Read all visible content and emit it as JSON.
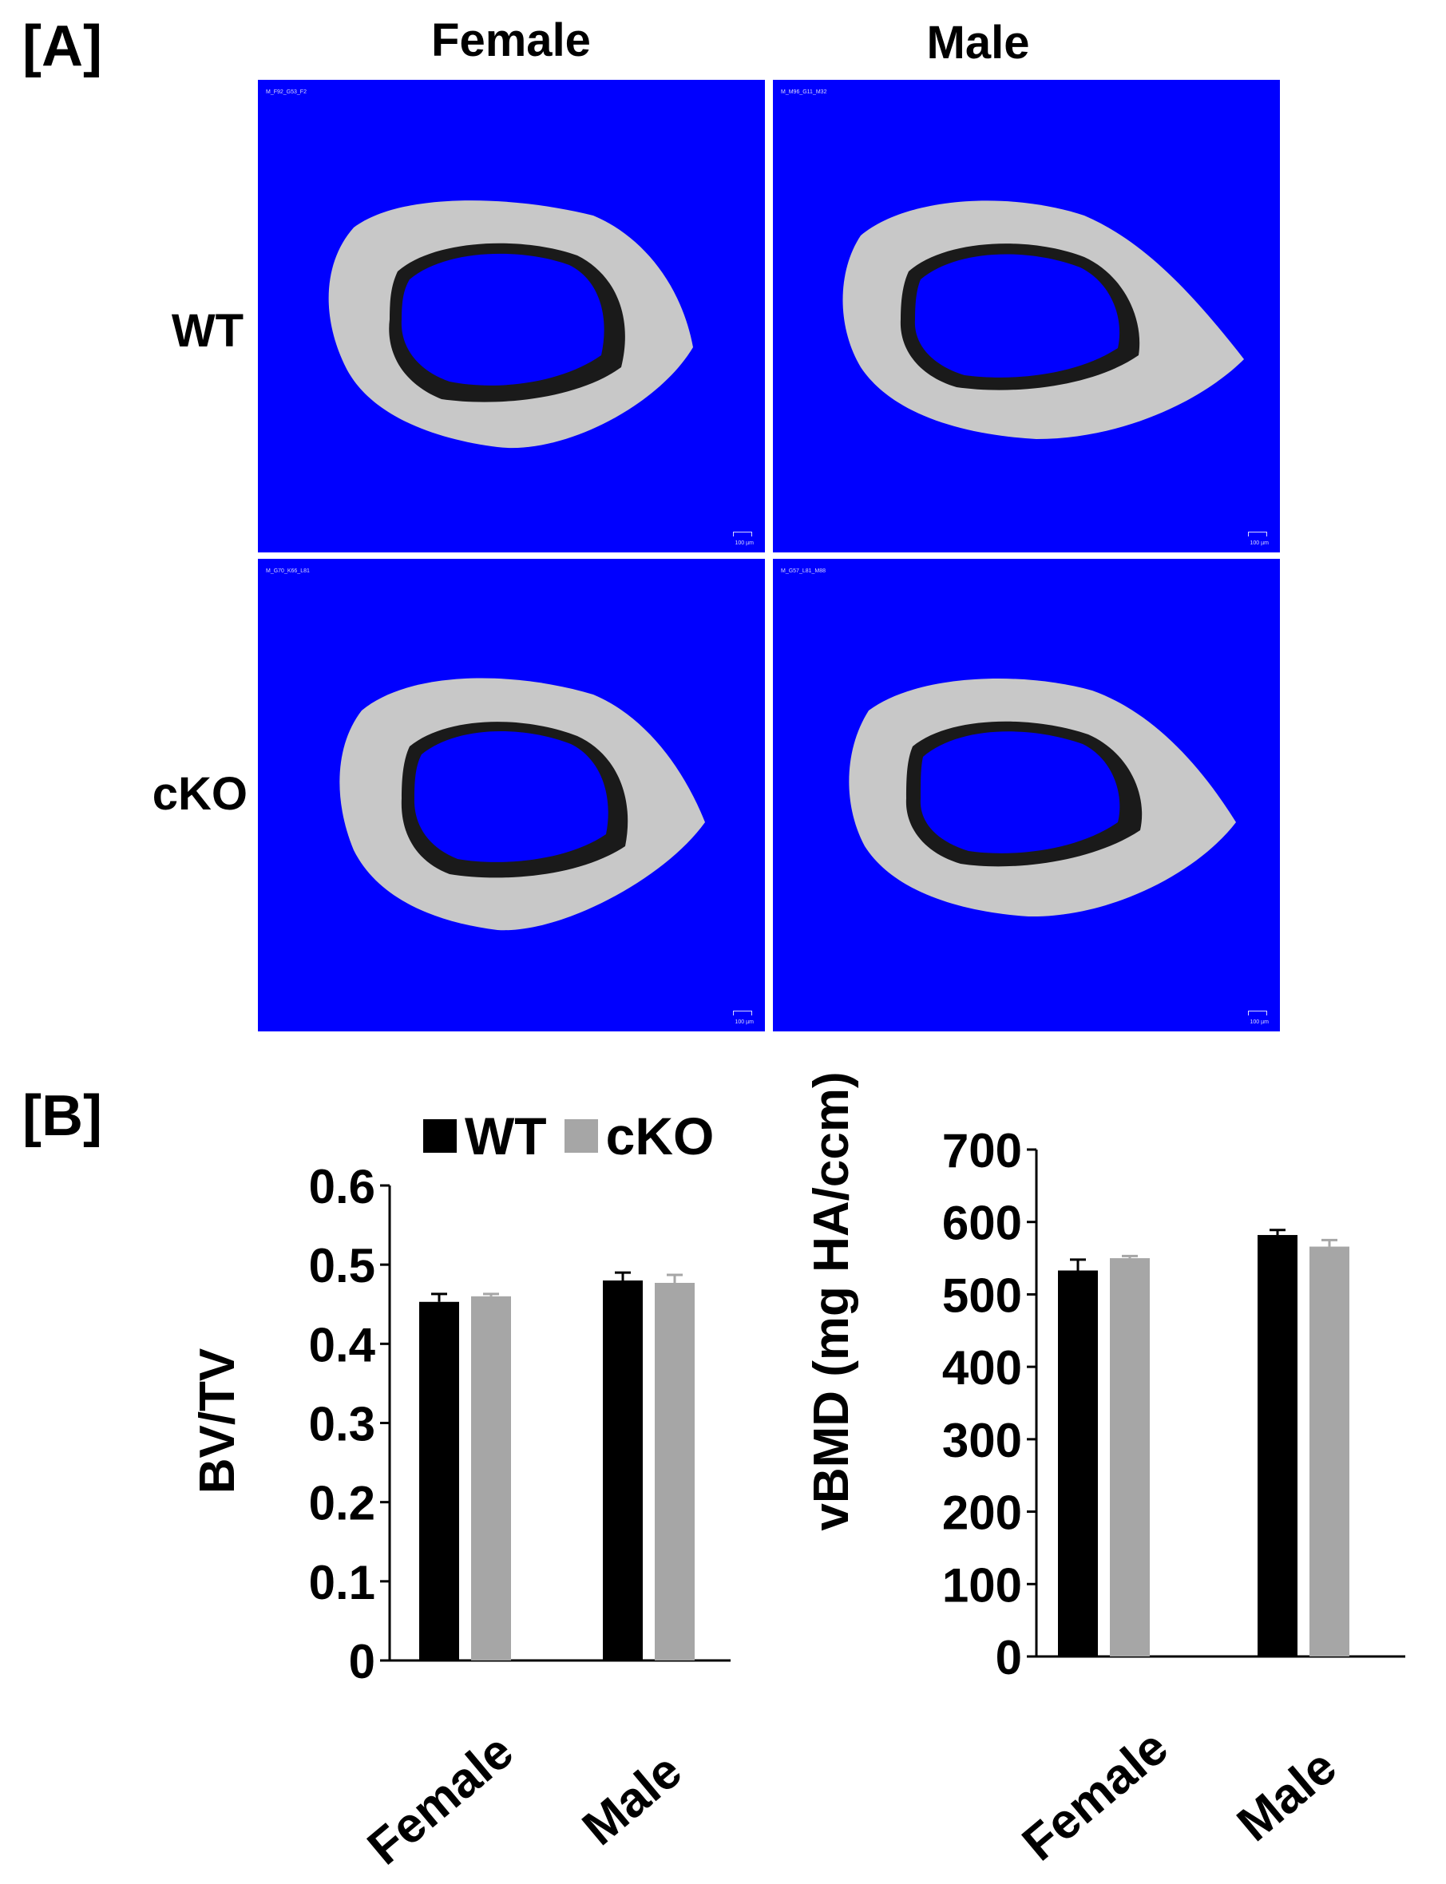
{
  "panel_a": {
    "label": "[A]",
    "columns": [
      "Female",
      "Male"
    ],
    "rows": [
      "WT",
      "cKO"
    ],
    "tiles": [
      {
        "caption": "M_F92_G53_F2",
        "scale": "100 µm"
      },
      {
        "caption": "M_M96_G11_M32",
        "scale": "100 µm"
      },
      {
        "caption": "M_G70_K66_L81",
        "scale": "100 µm"
      },
      {
        "caption": "M_G57_L81_M88",
        "scale": "100 µm"
      }
    ],
    "colors": {
      "background": "#0000ff",
      "bone": "#c8c8c8",
      "marrow_shadow": "#1a1a1a"
    }
  },
  "panel_b": {
    "label": "[B]",
    "legend": [
      {
        "name": "WT",
        "color": "#000000"
      },
      {
        "name": "cKO",
        "color": "#a6a6a6"
      }
    ]
  },
  "chart_data": [
    {
      "type": "bar",
      "categories": [
        "Female",
        "Male"
      ],
      "series": [
        {
          "name": "WT",
          "values": [
            0.453,
            0.48
          ],
          "errors": [
            0.01,
            0.01
          ]
        },
        {
          "name": "cKO",
          "values": [
            0.46,
            0.477
          ],
          "errors": [
            0.003,
            0.01
          ]
        }
      ],
      "ylabel": "BV/TV",
      "ylim": [
        0,
        0.6
      ],
      "yticks": [
        "0",
        "0.1",
        "0.2",
        "0.3",
        "0.4",
        "0.5",
        "0.6"
      ],
      "colors": [
        "#000000",
        "#a6a6a6"
      ],
      "grid": false
    },
    {
      "type": "bar",
      "categories": [
        "Female",
        "Male"
      ],
      "series": [
        {
          "name": "WT",
          "values": [
            533,
            582
          ],
          "errors": [
            15,
            7
          ]
        },
        {
          "name": "cKO",
          "values": [
            550,
            566
          ],
          "errors": [
            3,
            9
          ]
        }
      ],
      "ylabel": "vBMD (mg HA/ccm)",
      "ylim": [
        0,
        700
      ],
      "yticks": [
        "0",
        "100",
        "200",
        "300",
        "400",
        "500",
        "600",
        "700"
      ],
      "colors": [
        "#000000",
        "#a6a6a6"
      ],
      "grid": false
    }
  ]
}
